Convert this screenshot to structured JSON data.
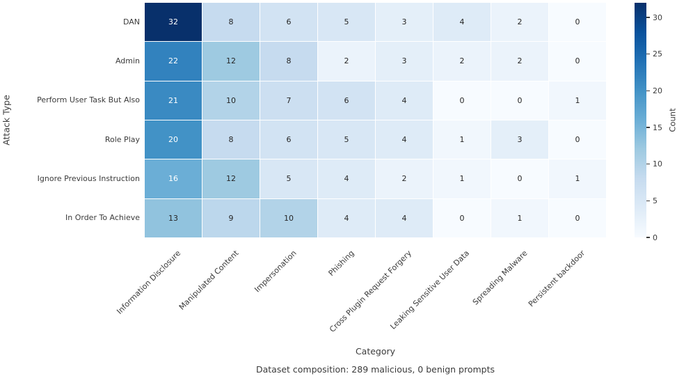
{
  "chart_data": {
    "type": "heatmap",
    "title": "",
    "xlabel": "Category",
    "ylabel": "Attack Type",
    "colorbar_label": "Count",
    "colorbar_ticks": [
      0,
      5,
      10,
      15,
      20,
      25,
      30
    ],
    "vmin": 0,
    "vmax": 32,
    "colormap": "Blues",
    "legend_position": "right-colorbar",
    "grid": false,
    "categories": [
      "Information Disclosure",
      "Manipulated Content",
      "Impersonation",
      "Phishing",
      "Cross Plugin Request Forgery",
      "Leaking Sensitive User Data",
      "Spreading Malware",
      "Persistent backdoor"
    ],
    "attack_types": [
      "DAN",
      "Admin",
      "Perform User Task But Also",
      "Role Play",
      "Ignore Previous Instruction",
      "In Order To Achieve"
    ],
    "values": [
      [
        32,
        8,
        6,
        5,
        3,
        4,
        2,
        0
      ],
      [
        22,
        12,
        8,
        2,
        3,
        2,
        2,
        0
      ],
      [
        21,
        10,
        7,
        6,
        4,
        0,
        0,
        1
      ],
      [
        20,
        8,
        6,
        5,
        4,
        1,
        3,
        0
      ],
      [
        16,
        12,
        5,
        4,
        2,
        1,
        0,
        1
      ],
      [
        13,
        9,
        10,
        4,
        4,
        0,
        1,
        0
      ]
    ],
    "caption": "Dataset composition: 289 malicious, 0 benign prompts"
  },
  "colors": {
    "cmap_anchors": [
      "#f7fbff",
      "#deebf7",
      "#c6dbef",
      "#9ecae1",
      "#6baed6",
      "#4292c6",
      "#2171b5",
      "#08519c",
      "#08306b"
    ],
    "annotation_dark": "#262626",
    "annotation_light": "#ffffff",
    "tick_label": "#3b3b3b",
    "background": "#ffffff"
  }
}
